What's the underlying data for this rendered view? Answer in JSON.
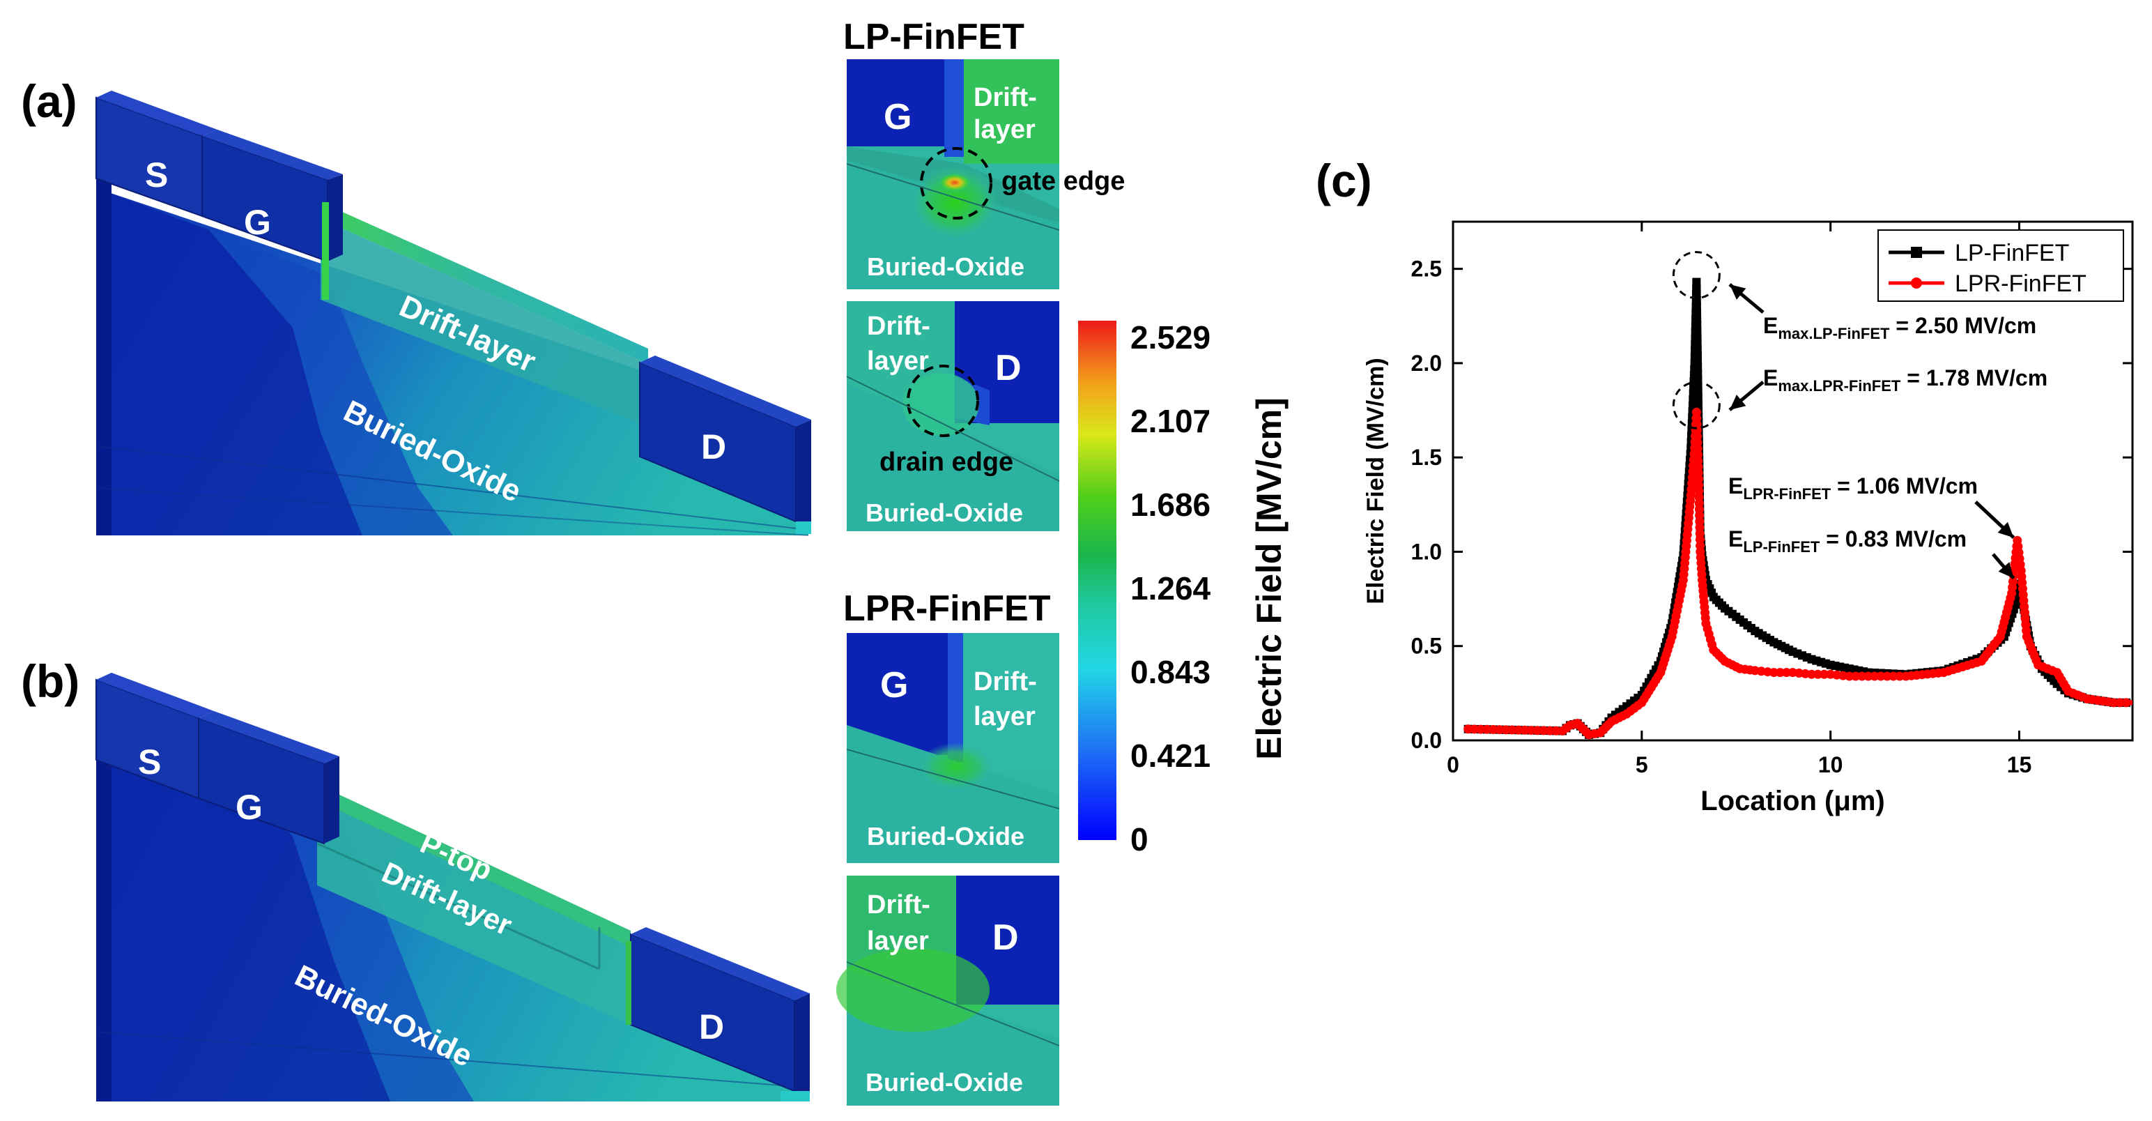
{
  "panel_a": {
    "tag": "(a)",
    "labels": {
      "source": "S",
      "gate": "G",
      "drift": "Drift-layer",
      "oxide": "Buried-Oxide",
      "drain": "D"
    }
  },
  "panel_b": {
    "tag": "(b)",
    "labels": {
      "source": "S",
      "gate": "G",
      "ptop": "P-top",
      "drift": "Drift-layer",
      "oxide": "Buried-Oxide",
      "drain": "D"
    }
  },
  "insets": {
    "lp_title": "LP-FinFET",
    "lpr_title": "LPR-FinFET",
    "lp_gate": {
      "gate": "G",
      "drift_1": "Drift-",
      "drift_2": "layer",
      "annotation": "gate edge",
      "oxide": "Buried-Oxide"
    },
    "lp_drain": {
      "drift_1": "Drift-",
      "drift_2": "layer",
      "drain": "D",
      "annotation": "drain edge",
      "oxide": "Buried-Oxide"
    },
    "lpr_gate": {
      "gate": "G",
      "drift_1": "Drift-",
      "drift_2": "layer",
      "oxide": "Buried-Oxide"
    },
    "lpr_drain": {
      "drift_1": "Drift-",
      "drift_2": "layer",
      "drain": "D",
      "oxide": "Buried-Oxide"
    }
  },
  "colorbar": {
    "title": "Electric Field [MV/cm]",
    "ticks": [
      "2.529",
      "2.107",
      "1.686",
      "1.264",
      "0.843",
      "0.421",
      "0"
    ]
  },
  "chart_data": {
    "type": "line",
    "panel_tag": "(c)",
    "title": "",
    "xlabel": "Location (μm)",
    "ylabel": "Electric Field (MV/cm)",
    "xlim": [
      0,
      18
    ],
    "ylim": [
      0,
      2.75
    ],
    "xticks": [
      0,
      5,
      10,
      15
    ],
    "yticks": [
      0.0,
      0.5,
      1.0,
      1.5,
      2.0,
      2.5
    ],
    "legend_position": "top-right",
    "series": [
      {
        "name": "LP-FinFET",
        "color": "#000000",
        "marker": "square",
        "x": [
          0.4,
          2.9,
          3.1,
          3.3,
          3.6,
          3.9,
          4.2,
          4.6,
          5.0,
          5.5,
          5.8,
          6.1,
          6.3,
          6.4,
          6.45,
          6.5,
          6.55,
          6.6,
          6.7,
          6.9,
          7.2,
          7.6,
          8.0,
          8.5,
          9.0,
          9.5,
          10.0,
          10.5,
          11.0,
          12.0,
          13.0,
          14.0,
          14.6,
          14.9,
          15.0,
          15.1,
          15.3,
          15.6,
          16.0,
          16.3,
          16.8,
          17.5,
          18.0
        ],
        "y": [
          0.06,
          0.05,
          0.08,
          0.09,
          0.03,
          0.04,
          0.12,
          0.18,
          0.24,
          0.42,
          0.62,
          0.98,
          1.55,
          2.0,
          2.43,
          1.75,
          1.1,
          0.98,
          0.85,
          0.76,
          0.7,
          0.64,
          0.58,
          0.52,
          0.47,
          0.43,
          0.4,
          0.38,
          0.36,
          0.35,
          0.37,
          0.44,
          0.55,
          0.72,
          0.83,
          0.72,
          0.5,
          0.38,
          0.3,
          0.25,
          0.22,
          0.2,
          0.2
        ]
      },
      {
        "name": "LPR-FinFET",
        "color": "#ff0000",
        "marker": "circle",
        "x": [
          0.4,
          2.9,
          3.1,
          3.3,
          3.6,
          3.9,
          4.2,
          4.6,
          5.0,
          5.5,
          5.8,
          6.1,
          6.3,
          6.4,
          6.45,
          6.5,
          6.55,
          6.6,
          6.7,
          6.9,
          7.2,
          7.6,
          8.0,
          8.5,
          9.0,
          9.5,
          10.0,
          10.5,
          11.0,
          12.0,
          13.0,
          14.0,
          14.5,
          14.8,
          14.95,
          15.05,
          15.2,
          15.5,
          16.0,
          16.3,
          16.8,
          17.5,
          18.0
        ],
        "y": [
          0.06,
          0.05,
          0.08,
          0.09,
          0.03,
          0.04,
          0.1,
          0.14,
          0.2,
          0.36,
          0.55,
          0.85,
          1.3,
          1.55,
          1.74,
          1.45,
          1.0,
          0.85,
          0.62,
          0.48,
          0.42,
          0.38,
          0.37,
          0.36,
          0.36,
          0.35,
          0.35,
          0.34,
          0.34,
          0.34,
          0.36,
          0.42,
          0.55,
          0.78,
          1.06,
          0.9,
          0.55,
          0.4,
          0.36,
          0.26,
          0.22,
          0.2,
          0.2
        ]
      }
    ],
    "annotations": {
      "max_lp": {
        "base": "E",
        "sub": "max.LP-FinFET",
        "rest": " = 2.50 MV/cm"
      },
      "max_lpr": {
        "base": "E",
        "sub": "max.LPR-FinFET",
        "rest": " = 1.78 MV/cm"
      },
      "lpr_drain": {
        "base": "E",
        "sub": "LPR-FinFET",
        "rest": " = 1.06 MV/cm"
      },
      "lp_drain": {
        "base": "E",
        "sub": "LP-FinFET",
        "rest": " = 0.83 MV/cm"
      }
    }
  }
}
